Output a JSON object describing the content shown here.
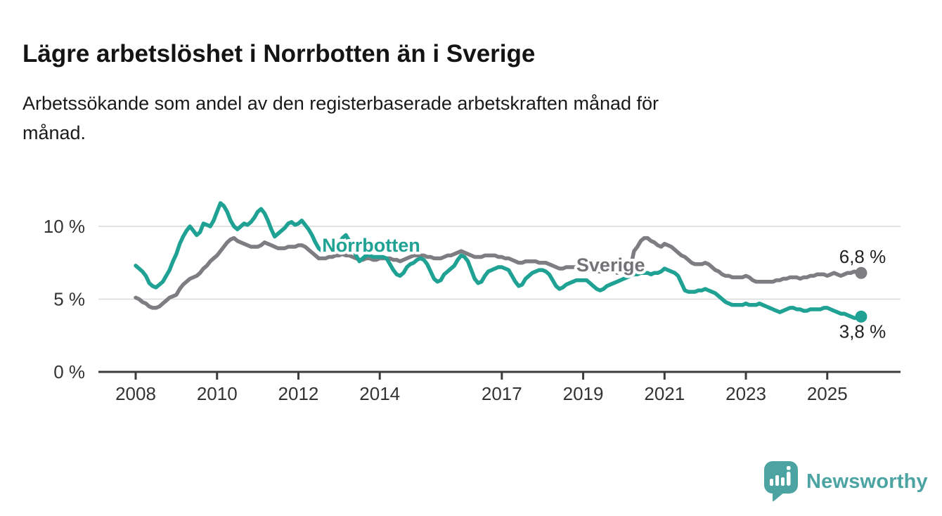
{
  "header": {
    "title": "Lägre arbetslöshet i Norrbotten än i Sverige",
    "subtitle_lines": [
      "Arbetssökande som andel av den registerbaserade arbetskraften månad för",
      "månad."
    ]
  },
  "footer": {
    "brand": "Newsworthy",
    "brand_color": "#4ba4a2",
    "logo_icon": "speech-bubble-bar-chart-icon"
  },
  "colors": {
    "norrbotten": "#1fa294",
    "sverige": "#7e7e82",
    "sverige_label": "#737377",
    "grid": "#d9d9d9",
    "axis": "#3c3c3c",
    "tick_text": "#333333",
    "value_text": "#222222",
    "background": "#ffffff"
  },
  "chart_data": {
    "type": "line",
    "title": "Lägre arbetslöshet i Norrbotten än i Sverige",
    "subtitle": "Arbetssökande som andel av den registerbaserade arbetskraften månad för månad.",
    "unit": "%",
    "x_interval": "monthly",
    "x_start": "2008-01",
    "x_end": "2025-11",
    "x_tick_years": [
      2008,
      2010,
      2012,
      2014,
      2017,
      2019,
      2021,
      2023,
      2025
    ],
    "y_ticks": [
      {
        "value": 0,
        "label": "0 %",
        "grid": false
      },
      {
        "value": 5,
        "label": "5 %",
        "grid": true
      },
      {
        "value": 10,
        "label": "10 %",
        "grid": true
      }
    ],
    "ylim": [
      0,
      12.5
    ],
    "legend_position": "inline-labels",
    "grid": "horizontal-only",
    "series": [
      {
        "name": "Sverige",
        "color": "#7e7e82",
        "label_color": "#737377",
        "end_label": "6,8 %",
        "end_label_position": "above",
        "values": [
          5.1,
          5.0,
          4.8,
          4.7,
          4.5,
          4.4,
          4.4,
          4.5,
          4.7,
          4.9,
          5.1,
          5.2,
          5.3,
          5.7,
          6.0,
          6.2,
          6.4,
          6.5,
          6.6,
          6.8,
          7.1,
          7.3,
          7.6,
          7.8,
          8.0,
          8.3,
          8.6,
          8.9,
          9.1,
          9.2,
          9.0,
          8.9,
          8.8,
          8.7,
          8.6,
          8.6,
          8.6,
          8.7,
          8.9,
          8.8,
          8.7,
          8.6,
          8.5,
          8.5,
          8.5,
          8.6,
          8.6,
          8.6,
          8.7,
          8.7,
          8.6,
          8.4,
          8.2,
          8.0,
          7.8,
          7.8,
          7.8,
          7.9,
          7.9,
          8.0,
          8.0,
          8.1,
          8.0,
          8.0,
          7.9,
          7.8,
          7.7,
          7.7,
          7.8,
          7.8,
          7.7,
          7.7,
          7.8,
          7.8,
          7.8,
          7.8,
          7.7,
          7.7,
          7.6,
          7.7,
          7.8,
          7.9,
          8.0,
          8.0,
          8.0,
          8.0,
          7.9,
          7.9,
          7.8,
          7.8,
          7.8,
          7.9,
          8.0,
          8.0,
          8.1,
          8.2,
          8.3,
          8.2,
          8.1,
          8.0,
          7.9,
          7.9,
          7.9,
          8.0,
          8.0,
          8.0,
          8.0,
          7.9,
          7.9,
          7.8,
          7.8,
          7.7,
          7.6,
          7.5,
          7.5,
          7.6,
          7.6,
          7.6,
          7.6,
          7.5,
          7.5,
          7.5,
          7.4,
          7.3,
          7.2,
          7.1,
          7.1,
          7.2,
          7.2,
          7.2,
          7.2,
          7.1,
          7.1,
          7.1,
          7.0,
          7.0,
          6.9,
          6.9,
          6.9,
          6.9,
          7.0,
          7.0,
          6.8,
          6.9,
          7.0,
          7.1,
          7.2,
          8.3,
          8.6,
          9.0,
          9.2,
          9.2,
          9.0,
          8.9,
          8.7,
          8.6,
          8.8,
          8.7,
          8.6,
          8.4,
          8.2,
          8.0,
          7.9,
          7.7,
          7.5,
          7.4,
          7.4,
          7.4,
          7.5,
          7.4,
          7.2,
          7.0,
          6.9,
          6.7,
          6.6,
          6.6,
          6.5,
          6.5,
          6.5,
          6.5,
          6.6,
          6.5,
          6.3,
          6.2,
          6.2,
          6.2,
          6.2,
          6.2,
          6.2,
          6.3,
          6.3,
          6.4,
          6.4,
          6.5,
          6.5,
          6.5,
          6.4,
          6.5,
          6.5,
          6.6,
          6.6,
          6.7,
          6.7,
          6.7,
          6.6,
          6.7,
          6.8,
          6.7,
          6.6,
          6.7,
          6.8,
          6.8,
          6.9,
          6.8,
          6.8
        ]
      },
      {
        "name": "Norrbotten",
        "color": "#1fa294",
        "label_color": "#1fa294",
        "end_label": "3,8 %",
        "end_label_position": "below",
        "values": [
          7.3,
          7.1,
          6.9,
          6.6,
          6.1,
          5.9,
          5.8,
          6.0,
          6.2,
          6.6,
          7.0,
          7.6,
          8.1,
          8.8,
          9.3,
          9.7,
          10.0,
          9.7,
          9.4,
          9.6,
          10.2,
          10.1,
          10.0,
          10.4,
          11.0,
          11.6,
          11.4,
          11.0,
          10.4,
          10.0,
          9.8,
          10.0,
          10.2,
          10.1,
          10.3,
          10.6,
          11.0,
          11.2,
          10.9,
          10.4,
          9.8,
          9.3,
          9.5,
          9.7,
          9.9,
          10.2,
          10.3,
          10.1,
          10.2,
          10.4,
          10.1,
          9.8,
          9.4,
          8.9,
          8.5,
          8.3,
          8.5,
          8.6,
          8.5,
          8.6,
          8.8,
          9.2,
          9.4,
          9.0,
          8.6,
          8.0,
          7.6,
          7.8,
          8.0,
          8.0,
          7.9,
          7.9,
          7.9,
          7.9,
          7.8,
          7.4,
          7.0,
          6.7,
          6.6,
          6.8,
          7.2,
          7.4,
          7.5,
          7.7,
          7.8,
          7.7,
          7.4,
          6.9,
          6.4,
          6.2,
          6.3,
          6.7,
          6.9,
          7.1,
          7.3,
          7.7,
          8.0,
          7.9,
          7.6,
          7.0,
          6.4,
          6.1,
          6.2,
          6.6,
          6.9,
          7.0,
          7.1,
          7.2,
          7.2,
          7.1,
          7.0,
          6.6,
          6.2,
          5.9,
          6.0,
          6.4,
          6.6,
          6.8,
          6.9,
          7.0,
          7.0,
          6.9,
          6.7,
          6.3,
          5.9,
          5.7,
          5.8,
          6.0,
          6.1,
          6.2,
          6.3,
          6.3,
          6.3,
          6.3,
          6.1,
          5.9,
          5.7,
          5.6,
          5.7,
          5.9,
          6.0,
          6.1,
          6.2,
          6.3,
          6.4,
          6.5,
          6.6,
          6.7,
          6.7,
          6.8,
          6.8,
          6.8,
          6.7,
          6.8,
          6.8,
          6.9,
          7.1,
          7.0,
          6.9,
          6.8,
          6.6,
          6.1,
          5.6,
          5.5,
          5.5,
          5.5,
          5.6,
          5.6,
          5.7,
          5.6,
          5.5,
          5.4,
          5.2,
          5.0,
          4.8,
          4.7,
          4.6,
          4.6,
          4.6,
          4.6,
          4.7,
          4.6,
          4.6,
          4.6,
          4.7,
          4.6,
          4.5,
          4.4,
          4.3,
          4.2,
          4.1,
          4.2,
          4.3,
          4.4,
          4.4,
          4.3,
          4.3,
          4.2,
          4.2,
          4.3,
          4.3,
          4.3,
          4.3,
          4.4,
          4.4,
          4.3,
          4.2,
          4.1,
          4.0,
          4.0,
          3.9,
          3.8,
          3.7,
          3.7,
          3.8
        ]
      }
    ],
    "annotations": [
      {
        "text": "Norrbotten",
        "month_index": 55,
        "value": 8.7,
        "color": "#1fa294"
      },
      {
        "text": "Sverige",
        "month_index": 130,
        "value": 7.35,
        "color": "#737377"
      }
    ]
  }
}
